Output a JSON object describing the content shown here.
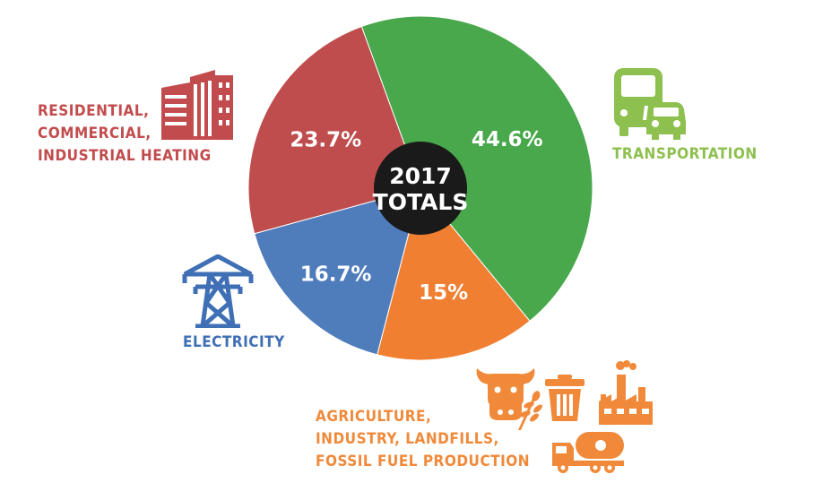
{
  "chart_data": {
    "type": "pie",
    "center_label": [
      "2017",
      "TOTALS"
    ],
    "slices": [
      {
        "name": "TRANSPORTATION",
        "label_lines": [
          "TRANSPORTATION"
        ],
        "value": 44.6,
        "value_label": "44.6%",
        "color": "#48a84b",
        "label_color": "#8dc04e"
      },
      {
        "name": "AGRICULTURE, INDUSTRY, LANDFILLS, FOSSIL FUEL PRODUCTION",
        "label_lines": [
          "AGRICULTURE,",
          "INDUSTRY, LANDFILLS,",
          "FOSSIL FUEL PRODUCTION"
        ],
        "value": 15,
        "value_label": "15%",
        "color": "#f07f32",
        "label_color": "#f08a3a"
      },
      {
        "name": "ELECTRICITY",
        "label_lines": [
          "ELECTRICITY"
        ],
        "value": 16.7,
        "value_label": "16.7%",
        "color": "#4f7dbc",
        "label_color": "#3f6fb4"
      },
      {
        "name": "RESIDENTIAL, COMMERCIAL, INDUSTRIAL HEATING",
        "label_lines": [
          "RESIDENTIAL,",
          "COMMERCIAL,",
          "INDUSTRIAL HEATING"
        ],
        "value": 23.7,
        "value_label": "23.7%",
        "color": "#bf4d4e",
        "label_color": "#c24c4d"
      }
    ],
    "center_color": "#1a1a1a"
  },
  "icons": {
    "residential": "office-building-icon",
    "transportation": "bus-and-car-icon",
    "electricity": "power-pylon-icon",
    "agriculture": [
      "cow-head-icon",
      "wheat-icon",
      "trash-can-icon",
      "factory-icon",
      "tanker-truck-icon"
    ]
  }
}
